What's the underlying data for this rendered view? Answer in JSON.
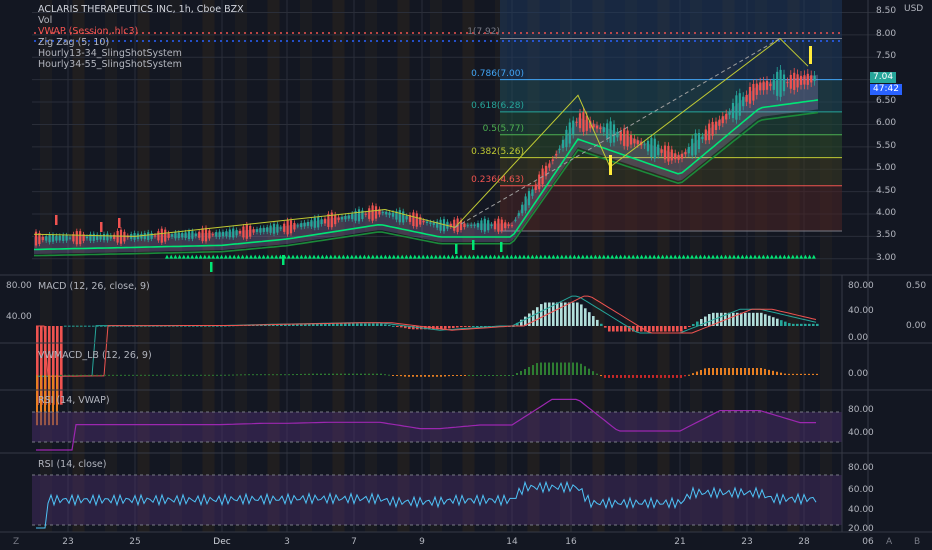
{
  "header": {
    "title": "ACLARIS THERAPEUTICS INC, 1h, Cboe BZX",
    "vol": "Vol",
    "vwap": "VWAP (Session, hlc3)",
    "zigzag": "Zig Zag (5, 10)",
    "ss1": "Hourly13-34_SlingShotSystem",
    "ss2": "Hourly34-55_SlingShotSystem"
  },
  "fib_levels": [
    {
      "label": "1(7.92)",
      "price": 7.92,
      "color": "#787b86"
    },
    {
      "label": "0.786(7.00)",
      "price": 7.0,
      "color": "#42a5f5"
    },
    {
      "label": "0.618(6.28)",
      "price": 6.28,
      "color": "#26a69a"
    },
    {
      "label": "0.5(5.77)",
      "price": 5.77,
      "color": "#4caf50"
    },
    {
      "label": "0.382(5.26)",
      "price": 5.26,
      "color": "#c0ca33"
    },
    {
      "label": "0.236(4.63)",
      "price": 4.63,
      "color": "#ef5350"
    }
  ],
  "price_axis": {
    "currency": "USD",
    "ticks": [
      "8.50",
      "8.00",
      "7.50",
      "7.00",
      "6.50",
      "6.00",
      "5.50",
      "5.00",
      "4.50",
      "4.00",
      "3.50",
      "3.00"
    ],
    "last_price": "7.04",
    "countdown": "47:42",
    "last_color": "#26a69a",
    "countdown_color": "#2962ff"
  },
  "panes": {
    "macd": {
      "label": "MACD (12, 26, close, 9)",
      "left_ticks": [
        "80.00",
        "40.00"
      ],
      "right_ticks": [
        "80.00",
        "40.00",
        "0.00"
      ],
      "far_right_ticks": [
        "0.50",
        "0.00"
      ]
    },
    "vwmacd": {
      "label": "VWMACD_LB (12, 26, 9)",
      "right_ticks": [
        "0.00"
      ]
    },
    "rsi_vwap": {
      "label": "RSI (14, VWAP)",
      "right_ticks": [
        "80.00",
        "40.00"
      ]
    },
    "rsi_close": {
      "label": "RSI (14, close)",
      "right_ticks": [
        "80.00",
        "60.00",
        "40.00",
        "20.00"
      ]
    }
  },
  "x_axis": {
    "labels": [
      "23",
      "25",
      "Dec",
      "3",
      "7",
      "9",
      "14",
      "16",
      "21",
      "23",
      "28",
      "06"
    ],
    "corner_left": "Z",
    "corner_right_a": "A",
    "corner_right_b": "B"
  },
  "chart_data": {
    "type": "line",
    "x": [
      "23",
      "25",
      "Dec",
      "3",
      "7",
      "9",
      "14",
      "16",
      "21",
      "23",
      "28"
    ],
    "series": [
      {
        "values": [
          3.45,
          3.5,
          3.55,
          3.7,
          4.05,
          3.75,
          3.75,
          6.1,
          5.25,
          6.85,
          7.04
        ]
      }
    ],
    "ylim": [
      2.75,
      8.6
    ],
    "grid": true
  }
}
